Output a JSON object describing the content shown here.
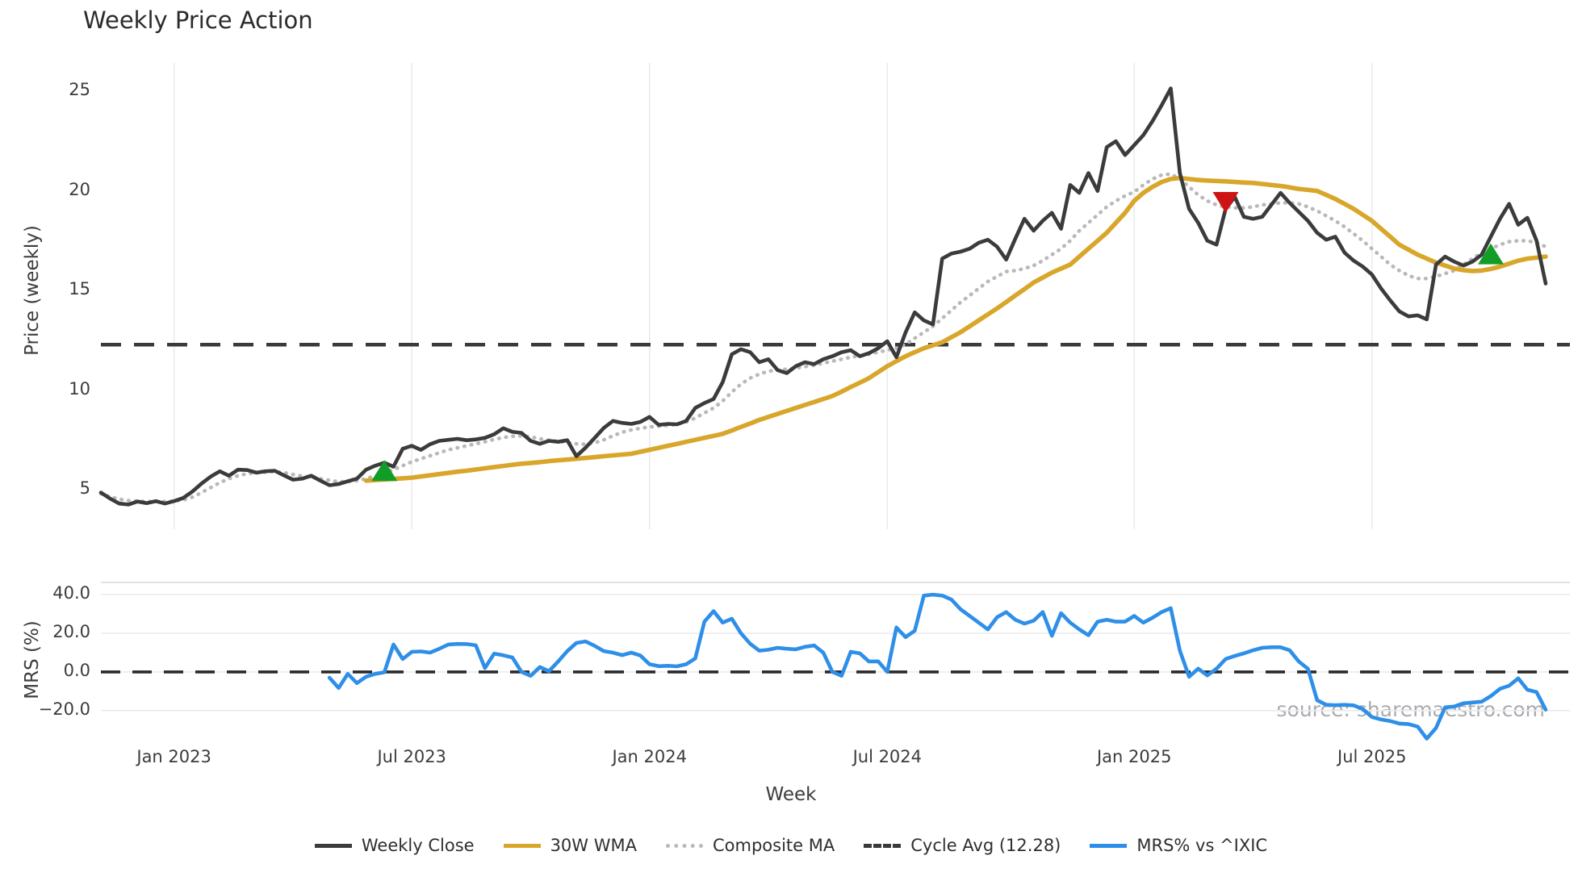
{
  "title": "Weekly Price Action",
  "watermark": "source: sharemaestro.com",
  "x_axis": {
    "label": "Week",
    "ticks": [
      {
        "label": "Jan 2023",
        "week": 8
      },
      {
        "label": "Jul 2023",
        "week": 34
      },
      {
        "label": "Jan 2024",
        "week": 60
      },
      {
        "label": "Jul 2024",
        "week": 86
      },
      {
        "label": "Jan 2025",
        "week": 113
      },
      {
        "label": "Jul 2025",
        "week": 139
      }
    ]
  },
  "colors": {
    "close": "#3b3b3b",
    "wma": "#d8a62a",
    "composite": "#b9b9b9",
    "cycle_avg": "#3a3a3a",
    "mrs": "#2e8fe8",
    "buy_marker": "#129e26",
    "sell_marker": "#ce1312",
    "grid": "#ebebee",
    "spine": "#d9d9de",
    "watermark": "#a8abaf"
  },
  "chart_data": [
    {
      "type": "line",
      "panel": "price",
      "ylabel": "Price (weekly)",
      "yticks": [
        25,
        20,
        15,
        10,
        5
      ],
      "ytick_labels": [
        "25",
        "20",
        "15",
        "10",
        "5"
      ],
      "ylim": [
        2.85,
        26.55
      ],
      "x_unit": "weekly index, 159 points, Nov 2022 - Nov 2025",
      "cycle_avg_value": 12.28,
      "series": [
        {
          "name": "Weekly Close",
          "style": "solid",
          "values": [
            4.85,
            4.55,
            4.3,
            4.25,
            4.4,
            4.32,
            4.42,
            4.3,
            4.42,
            4.58,
            4.9,
            5.3,
            5.65,
            5.92,
            5.7,
            6.0,
            5.98,
            5.85,
            5.92,
            5.95,
            5.72,
            5.5,
            5.55,
            5.7,
            5.45,
            5.22,
            5.28,
            5.42,
            5.55,
            6.0,
            6.2,
            6.35,
            6.15,
            7.05,
            7.2,
            7.0,
            7.28,
            7.45,
            7.5,
            7.55,
            7.48,
            7.52,
            7.6,
            7.78,
            8.08,
            7.9,
            7.85,
            7.45,
            7.3,
            7.45,
            7.4,
            7.48,
            6.68,
            7.1,
            7.6,
            8.1,
            8.45,
            8.35,
            8.3,
            8.4,
            8.65,
            8.25,
            8.3,
            8.28,
            8.45,
            9.1,
            9.35,
            9.55,
            10.4,
            11.8,
            12.05,
            11.9,
            11.4,
            11.55,
            11.0,
            10.85,
            11.2,
            11.4,
            11.3,
            11.55,
            11.7,
            11.9,
            12.0,
            11.7,
            11.85,
            12.1,
            12.45,
            11.65,
            12.9,
            13.9,
            13.5,
            13.3,
            16.6,
            16.85,
            16.95,
            17.1,
            17.4,
            17.55,
            17.2,
            16.55,
            17.6,
            18.6,
            18.0,
            18.5,
            18.9,
            18.1,
            20.3,
            19.9,
            20.9,
            20.0,
            22.2,
            22.5,
            21.8,
            22.3,
            22.8,
            23.5,
            24.3,
            25.15,
            20.9,
            19.1,
            18.4,
            17.5,
            17.3,
            19.1,
            19.7,
            18.7,
            18.6,
            18.7,
            19.3,
            19.9,
            19.4,
            18.95,
            18.5,
            17.9,
            17.55,
            17.7,
            16.9,
            16.5,
            16.2,
            15.8,
            15.1,
            14.5,
            13.95,
            13.7,
            13.75,
            13.55,
            16.3,
            16.7,
            16.45,
            16.25,
            16.45,
            16.8,
            17.7,
            18.6,
            19.35,
            18.3,
            18.65,
            17.5,
            15.35
          ]
        },
        {
          "name": "30W WMA",
          "style": "solid",
          "values": [
            null,
            null,
            null,
            null,
            null,
            null,
            null,
            null,
            null,
            null,
            null,
            null,
            null,
            null,
            null,
            null,
            null,
            null,
            null,
            null,
            null,
            null,
            null,
            null,
            null,
            null,
            null,
            null,
            null,
            5.45,
            5.48,
            5.51,
            5.54,
            5.57,
            5.6,
            5.66,
            5.72,
            5.78,
            5.84,
            5.9,
            5.95,
            6.01,
            6.07,
            6.13,
            6.19,
            6.25,
            6.3,
            6.34,
            6.38,
            6.43,
            6.47,
            6.51,
            6.55,
            6.59,
            6.63,
            6.68,
            6.72,
            6.76,
            6.8,
            6.9,
            7.0,
            7.1,
            7.2,
            7.3,
            7.4,
            7.5,
            7.6,
            7.7,
            7.8,
            7.97,
            8.15,
            8.32,
            8.5,
            8.65,
            8.8,
            8.95,
            9.1,
            9.25,
            9.4,
            9.55,
            9.7,
            9.92,
            10.15,
            10.37,
            10.6,
            10.9,
            11.2,
            11.45,
            11.7,
            11.9,
            12.1,
            12.25,
            12.4,
            12.65,
            12.9,
            13.2,
            13.5,
            13.8,
            14.1,
            14.42,
            14.75,
            15.07,
            15.4,
            15.65,
            15.9,
            16.1,
            16.3,
            16.7,
            17.1,
            17.5,
            17.9,
            18.4,
            18.9,
            19.5,
            19.9,
            20.2,
            20.45,
            20.6,
            20.65,
            20.6,
            20.55,
            20.52,
            20.5,
            20.48,
            20.45,
            20.42,
            20.4,
            20.35,
            20.3,
            20.25,
            20.18,
            20.1,
            20.05,
            20.0,
            19.8,
            19.6,
            19.35,
            19.1,
            18.8,
            18.5,
            18.1,
            17.7,
            17.3,
            17.05,
            16.8,
            16.6,
            16.4,
            16.25,
            16.1,
            16.02,
            15.98,
            16.0,
            16.08,
            16.2,
            16.35,
            16.5,
            16.6,
            16.65,
            16.7
          ]
        },
        {
          "name": "Composite MA",
          "style": "dotted",
          "values": [
            4.8,
            4.65,
            4.52,
            4.45,
            4.42,
            4.4,
            4.4,
            4.4,
            4.42,
            4.48,
            4.62,
            4.85,
            5.1,
            5.35,
            5.55,
            5.7,
            5.8,
            5.85,
            5.88,
            5.9,
            5.85,
            5.76,
            5.68,
            5.62,
            5.55,
            5.47,
            5.4,
            5.4,
            5.45,
            5.55,
            5.7,
            5.85,
            6.0,
            6.2,
            6.4,
            6.55,
            6.7,
            6.85,
            7.0,
            7.1,
            7.2,
            7.3,
            7.4,
            7.52,
            7.62,
            7.68,
            7.7,
            7.65,
            7.55,
            7.48,
            7.42,
            7.38,
            7.3,
            7.28,
            7.35,
            7.5,
            7.7,
            7.88,
            8.0,
            8.08,
            8.15,
            8.18,
            8.22,
            8.28,
            8.4,
            8.6,
            8.85,
            9.1,
            9.45,
            9.9,
            10.3,
            10.6,
            10.8,
            10.95,
            11.0,
            11.05,
            11.1,
            11.18,
            11.25,
            11.35,
            11.45,
            11.55,
            11.65,
            11.72,
            11.8,
            11.9,
            12.0,
            12.1,
            12.3,
            12.6,
            12.9,
            13.2,
            13.6,
            14.0,
            14.4,
            14.75,
            15.1,
            15.45,
            15.7,
            15.95,
            16.0,
            16.1,
            16.25,
            16.5,
            16.8,
            17.1,
            17.5,
            18.0,
            18.4,
            18.8,
            19.2,
            19.5,
            19.75,
            19.95,
            20.3,
            20.6,
            20.8,
            20.85,
            20.6,
            20.2,
            19.8,
            19.5,
            19.3,
            19.2,
            19.15,
            19.15,
            19.2,
            19.3,
            19.35,
            19.4,
            19.4,
            19.35,
            19.2,
            19.0,
            18.75,
            18.5,
            18.2,
            17.85,
            17.5,
            17.1,
            16.7,
            16.3,
            16.0,
            15.75,
            15.6,
            15.6,
            15.7,
            15.85,
            16.0,
            16.3,
            16.6,
            16.9,
            17.1,
            17.3,
            17.45,
            17.5,
            17.5,
            17.4,
            17.2
          ]
        },
        {
          "name": "Cycle Avg",
          "style": "dashed",
          "constant": 12.28
        }
      ],
      "markers": {
        "buy": [
          {
            "week": 31,
            "price": 5.88
          },
          {
            "week": 152,
            "price": 16.76
          }
        ],
        "sell": [
          {
            "week": 123,
            "price": 19.5
          }
        ]
      }
    },
    {
      "type": "line",
      "panel": "mrs",
      "ylabel": "MRS (%)",
      "yticks": [
        40,
        20,
        0,
        -20
      ],
      "ytick_labels": [
        "40.0",
        "20.0",
        "0.0",
        "−20.0"
      ],
      "ylim": [
        -35.5,
        46.3
      ],
      "zero_line": 0,
      "series": [
        {
          "name": "MRS% vs ^IXIC",
          "style": "solid",
          "values": [
            null,
            null,
            null,
            null,
            null,
            null,
            null,
            null,
            null,
            null,
            null,
            null,
            null,
            null,
            null,
            null,
            null,
            null,
            null,
            null,
            null,
            null,
            null,
            null,
            null,
            -3.0,
            -8.3,
            -1.0,
            -5.8,
            -2.5,
            -1.0,
            -0.2,
            14.2,
            6.7,
            10.4,
            10.6,
            10.0,
            12.0,
            14.2,
            14.5,
            14.4,
            13.8,
            2.0,
            9.5,
            8.6,
            7.5,
            0.0,
            -2.0,
            2.5,
            0.4,
            5.4,
            10.8,
            15.0,
            15.8,
            13.5,
            10.8,
            10.0,
            8.7,
            10.0,
            8.5,
            4.0,
            3.0,
            3.2,
            2.9,
            4.0,
            7.0,
            26.0,
            31.5,
            25.5,
            27.5,
            20.0,
            14.6,
            11.0,
            11.5,
            12.5,
            12.0,
            11.7,
            13.0,
            13.7,
            10.0,
            0.0,
            -2.0,
            10.4,
            9.6,
            5.4,
            5.5,
            0.0,
            23.0,
            18.0,
            21.3,
            39.5,
            40.0,
            39.5,
            37.5,
            32.5,
            29.0,
            25.5,
            22.0,
            28.3,
            31.0,
            27.0,
            25.0,
            26.5,
            31.0,
            18.7,
            30.4,
            25.5,
            22.0,
            19.0,
            26.0,
            27.0,
            26.0,
            26.0,
            29.0,
            25.5,
            28.0,
            31.0,
            33.0,
            11.0,
            -2.5,
            1.7,
            -1.8,
            1.7,
            6.7,
            8.3,
            9.6,
            11.2,
            12.5,
            12.8,
            12.8,
            11.2,
            5.4,
            1.7,
            -14.6,
            -17.0,
            -17.2,
            -17.0,
            -17.3,
            -19.2,
            -23.3,
            -24.6,
            -25.4,
            -26.7,
            -27.0,
            -28.3,
            -34.5,
            -29.0,
            -18.3,
            -17.9,
            -16.2,
            -15.8,
            -15.4,
            -12.5,
            -8.7,
            -7.1,
            -3.3,
            -9.2,
            -10.4,
            -19.5
          ]
        }
      ]
    }
  ],
  "legend": {
    "items": [
      {
        "label": "Weekly Close",
        "style": "solid",
        "color": "#3b3b3b"
      },
      {
        "label": "30W WMA",
        "style": "solid",
        "color": "#d8a62a"
      },
      {
        "label": "Composite MA",
        "style": "dotted",
        "color": "#b9b9b9"
      },
      {
        "label": "Cycle Avg (12.28)",
        "style": "dashed",
        "color": "#3a3a3a"
      },
      {
        "label": "MRS% vs ^IXIC",
        "style": "solid",
        "color": "#2e8fe8"
      }
    ]
  }
}
